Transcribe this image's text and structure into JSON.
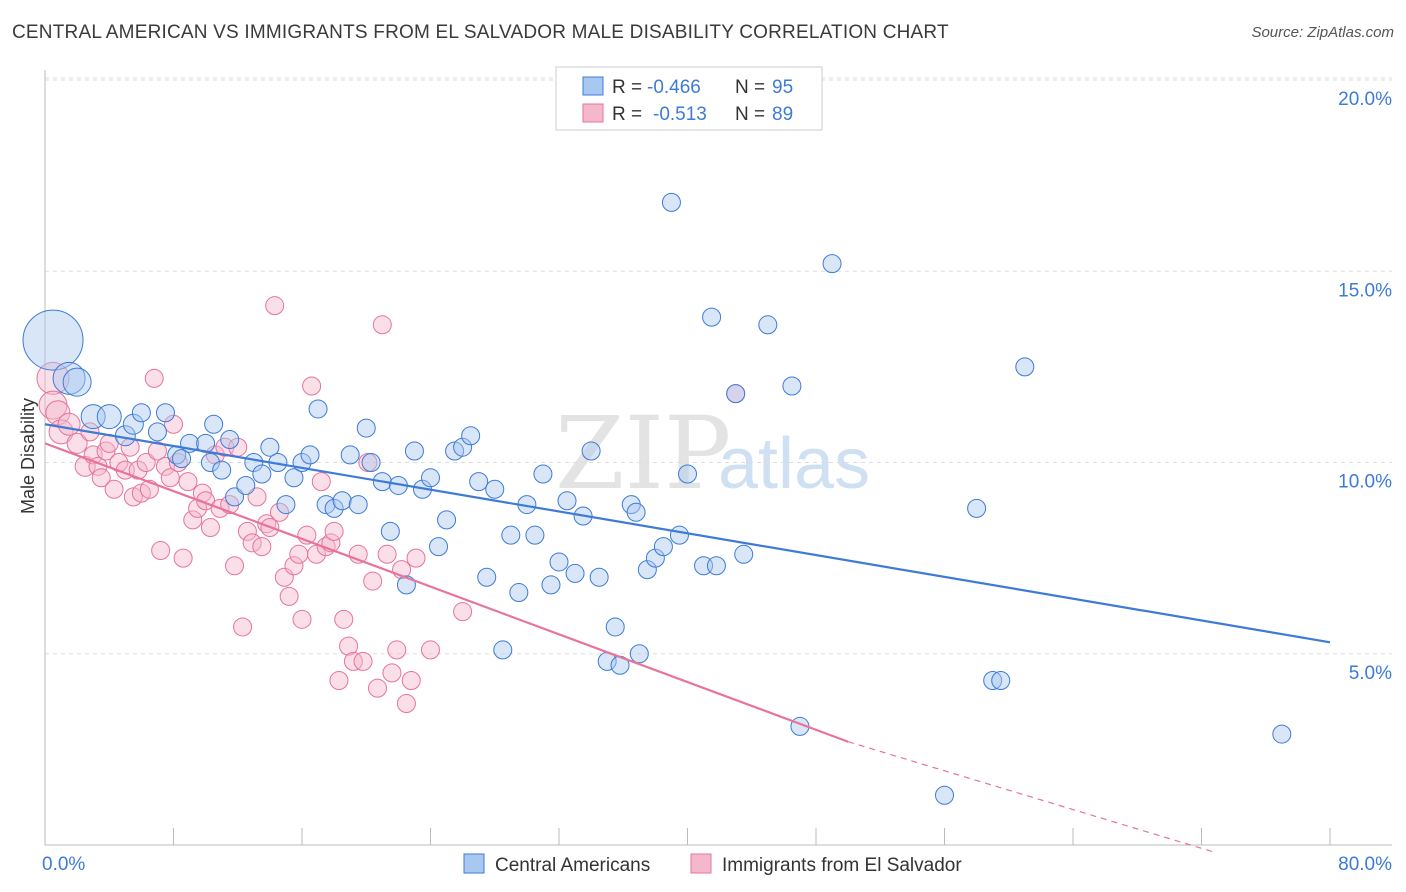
{
  "title": "CENTRAL AMERICAN VS IMMIGRANTS FROM EL SALVADOR MALE DISABILITY CORRELATION CHART",
  "source": "Source: ZipAtlas.com",
  "watermark": {
    "left": "ZIP",
    "right": "atlas"
  },
  "colors": {
    "blue": "#3d7bd6",
    "pink": "#e8739b",
    "blue_fill": "#a8c8f0",
    "pink_fill": "#f5b8cb"
  },
  "legend": {
    "rows": [
      {
        "r_label": "R =",
        "r_value": "-0.466",
        "n_label": "N =",
        "n_value": "95"
      },
      {
        "r_label": "R =",
        "r_value": "-0.513",
        "n_label": "N =",
        "n_value": "89"
      }
    ]
  },
  "chart_data": {
    "type": "scatter",
    "ylabel": "Male Disability",
    "xlim": [
      0,
      80
    ],
    "ylim": [
      0,
      20
    ],
    "x_ticks": [
      "0.0%",
      "80.0%"
    ],
    "y_ticks": [
      {
        "value": 5,
        "label": "5.0%"
      },
      {
        "value": 10,
        "label": "10.0%"
      },
      {
        "value": 15,
        "label": "15.0%"
      },
      {
        "value": 20,
        "label": "20.0%"
      }
    ],
    "series": [
      {
        "name": "Central Americans",
        "color": "#3d7bd6",
        "trend": {
          "x1": 0,
          "y1": 11.0,
          "x2": 80,
          "y2": 5.3,
          "dashed_to": null
        },
        "points": [
          [
            0.5,
            13.2,
            30
          ],
          [
            1.5,
            12.2,
            16
          ],
          [
            2,
            12.1,
            14
          ],
          [
            3,
            11.2,
            12
          ],
          [
            4,
            11.2,
            12
          ],
          [
            5,
            10.7,
            10
          ],
          [
            5.5,
            11.0,
            10
          ],
          [
            6,
            11.3,
            9
          ],
          [
            7,
            10.8,
            9
          ],
          [
            7.5,
            11.3,
            9
          ],
          [
            8.2,
            10.2,
            9
          ],
          [
            8.5,
            10.1,
            9
          ],
          [
            9,
            10.5,
            9
          ],
          [
            10,
            10.5,
            9
          ],
          [
            10.3,
            10.0,
            9
          ],
          [
            10.5,
            11.0,
            9
          ],
          [
            11,
            9.8,
            9
          ],
          [
            11.5,
            10.6,
            9
          ],
          [
            11.8,
            9.1,
            9
          ],
          [
            12.5,
            9.4,
            9
          ],
          [
            13,
            10.0,
            9
          ],
          [
            13.5,
            9.7,
            9
          ],
          [
            14,
            10.4,
            9
          ],
          [
            14.5,
            10.0,
            9
          ],
          [
            15,
            8.9,
            9
          ],
          [
            15.5,
            9.6,
            9
          ],
          [
            16,
            10.0,
            9
          ],
          [
            16.5,
            10.2,
            9
          ],
          [
            17,
            11.4,
            9
          ],
          [
            17.5,
            8.9,
            9
          ],
          [
            18,
            8.8,
            9
          ],
          [
            18.5,
            9.0,
            9
          ],
          [
            19,
            10.2,
            9
          ],
          [
            19.5,
            8.9,
            9
          ],
          [
            20,
            10.9,
            9
          ],
          [
            20.3,
            10.0,
            9
          ],
          [
            21,
            9.5,
            9
          ],
          [
            21.5,
            8.2,
            9
          ],
          [
            22,
            9.4,
            9
          ],
          [
            22.5,
            6.8,
            9
          ],
          [
            23,
            10.3,
            9
          ],
          [
            23.5,
            9.3,
            9
          ],
          [
            24,
            9.6,
            9
          ],
          [
            24.5,
            7.8,
            9
          ],
          [
            25,
            8.5,
            9
          ],
          [
            25.5,
            10.3,
            9
          ],
          [
            26,
            10.4,
            9
          ],
          [
            26.5,
            10.7,
            9
          ],
          [
            27,
            9.5,
            9
          ],
          [
            27.5,
            7.0,
            9
          ],
          [
            28,
            9.3,
            9
          ],
          [
            28.5,
            5.1,
            9
          ],
          [
            29,
            8.1,
            9
          ],
          [
            29.5,
            6.6,
            9
          ],
          [
            30,
            8.9,
            9
          ],
          [
            30.5,
            8.1,
            9
          ],
          [
            31,
            9.7,
            9
          ],
          [
            31.5,
            6.8,
            9
          ],
          [
            32,
            7.4,
            9
          ],
          [
            32.5,
            9.0,
            9
          ],
          [
            33,
            7.1,
            9
          ],
          [
            33.5,
            8.6,
            9
          ],
          [
            34,
            10.3,
            9
          ],
          [
            34.5,
            7.0,
            9
          ],
          [
            35,
            4.8,
            9
          ],
          [
            35.5,
            5.7,
            9
          ],
          [
            35.8,
            4.7,
            9
          ],
          [
            36.5,
            8.9,
            9
          ],
          [
            36.8,
            8.7,
            9
          ],
          [
            37,
            5.0,
            9
          ],
          [
            37.5,
            7.2,
            9
          ],
          [
            38,
            7.5,
            9
          ],
          [
            38.5,
            7.8,
            9
          ],
          [
            39,
            16.8,
            9
          ],
          [
            39.5,
            8.1,
            9
          ],
          [
            40,
            9.7,
            9
          ],
          [
            41,
            7.3,
            9
          ],
          [
            41.5,
            13.8,
            9
          ],
          [
            41.8,
            7.3,
            9
          ],
          [
            43,
            11.8,
            9
          ],
          [
            43.5,
            7.6,
            9
          ],
          [
            45,
            13.6,
            9
          ],
          [
            46.5,
            12.0,
            9
          ],
          [
            47,
            3.1,
            9
          ],
          [
            49,
            15.2,
            9
          ],
          [
            56,
            1.3,
            9
          ],
          [
            58,
            8.8,
            9
          ],
          [
            59,
            4.3,
            9
          ],
          [
            59.5,
            4.3,
            9
          ],
          [
            61,
            12.5,
            9
          ],
          [
            77,
            2.9,
            9
          ]
        ]
      },
      {
        "name": "Immigrants from El Salvador",
        "color": "#e8739b",
        "trend": {
          "x1": 0,
          "y1": 10.5,
          "x2": 50,
          "y2": 2.7,
          "dashed_to": {
            "x": 80,
            "y": -1.1
          }
        },
        "points": [
          [
            0.5,
            12.2,
            16
          ],
          [
            0.5,
            11.5,
            14
          ],
          [
            0.8,
            11.3,
            12
          ],
          [
            1,
            10.8,
            12
          ],
          [
            1.5,
            11.0,
            11
          ],
          [
            2,
            10.5,
            10
          ],
          [
            2.5,
            9.9,
            10
          ],
          [
            2.8,
            10.8,
            9
          ],
          [
            3,
            10.2,
            9
          ],
          [
            3.3,
            9.9,
            9
          ],
          [
            3.5,
            9.6,
            9
          ],
          [
            3.8,
            10.3,
            9
          ],
          [
            4,
            10.5,
            9
          ],
          [
            4.3,
            9.3,
            9
          ],
          [
            4.6,
            10.0,
            9
          ],
          [
            5,
            9.8,
            9
          ],
          [
            5.3,
            10.4,
            9
          ],
          [
            5.5,
            9.1,
            9
          ],
          [
            5.8,
            9.8,
            9
          ],
          [
            6,
            9.2,
            9
          ],
          [
            6.3,
            10.0,
            9
          ],
          [
            6.5,
            9.3,
            9
          ],
          [
            6.8,
            12.2,
            9
          ],
          [
            7,
            10.3,
            9
          ],
          [
            7.2,
            7.7,
            9
          ],
          [
            7.5,
            9.9,
            9
          ],
          [
            7.8,
            9.6,
            9
          ],
          [
            8,
            11.0,
            9
          ],
          [
            8.3,
            10.0,
            9
          ],
          [
            8.6,
            7.5,
            9
          ],
          [
            8.9,
            9.5,
            9
          ],
          [
            9.2,
            8.5,
            9
          ],
          [
            9.5,
            8.8,
            9
          ],
          [
            9.8,
            9.2,
            9
          ],
          [
            10,
            9.0,
            9
          ],
          [
            10.3,
            8.3,
            9
          ],
          [
            10.6,
            10.2,
            9
          ],
          [
            10.9,
            8.8,
            9
          ],
          [
            11.2,
            10.4,
            9
          ],
          [
            11.5,
            8.9,
            9
          ],
          [
            11.8,
            7.3,
            9
          ],
          [
            12,
            10.4,
            9
          ],
          [
            12.3,
            5.7,
            9
          ],
          [
            12.6,
            8.2,
            9
          ],
          [
            12.9,
            7.9,
            9
          ],
          [
            13.2,
            9.1,
            9
          ],
          [
            13.5,
            7.8,
            9
          ],
          [
            13.8,
            8.4,
            9
          ],
          [
            14,
            8.3,
            9
          ],
          [
            14.3,
            14.1,
            9
          ],
          [
            14.6,
            8.7,
            9
          ],
          [
            14.9,
            7.0,
            9
          ],
          [
            15.2,
            6.5,
            9
          ],
          [
            15.5,
            7.3,
            9
          ],
          [
            15.8,
            7.6,
            9
          ],
          [
            16,
            5.9,
            9
          ],
          [
            16.3,
            8.1,
            9
          ],
          [
            16.6,
            12.0,
            9
          ],
          [
            16.9,
            7.6,
            9
          ],
          [
            17.2,
            9.5,
            9
          ],
          [
            17.5,
            7.8,
            9
          ],
          [
            17.8,
            7.9,
            9
          ],
          [
            18,
            8.2,
            9
          ],
          [
            18.3,
            4.3,
            9
          ],
          [
            18.6,
            5.9,
            9
          ],
          [
            18.9,
            5.2,
            9
          ],
          [
            19.2,
            4.8,
            9
          ],
          [
            19.5,
            7.6,
            9
          ],
          [
            19.8,
            4.8,
            9
          ],
          [
            20.1,
            10.0,
            9
          ],
          [
            20.4,
            6.9,
            9
          ],
          [
            20.7,
            4.1,
            9
          ],
          [
            21,
            13.6,
            9
          ],
          [
            21.3,
            7.6,
            9
          ],
          [
            21.6,
            4.5,
            9
          ],
          [
            21.9,
            5.1,
            9
          ],
          [
            22.2,
            7.2,
            9
          ],
          [
            22.5,
            3.7,
            9
          ],
          [
            22.8,
            4.3,
            9
          ],
          [
            23.1,
            7.5,
            9
          ],
          [
            24,
            5.1,
            9
          ],
          [
            26,
            6.1,
            9
          ],
          [
            43,
            11.8,
            9
          ]
        ]
      }
    ]
  },
  "bottom_legend": [
    "Central Americans",
    "Immigrants from El Salvador"
  ]
}
